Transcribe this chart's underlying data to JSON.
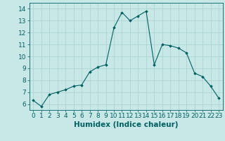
{
  "x": [
    0,
    1,
    2,
    3,
    4,
    5,
    6,
    7,
    8,
    9,
    10,
    11,
    12,
    13,
    14,
    15,
    16,
    17,
    18,
    19,
    20,
    21,
    22,
    23
  ],
  "y": [
    6.3,
    5.8,
    6.8,
    7.0,
    7.2,
    7.5,
    7.6,
    8.7,
    9.1,
    9.3,
    12.4,
    13.7,
    13.0,
    13.4,
    13.8,
    9.3,
    11.0,
    10.9,
    10.7,
    10.3,
    8.6,
    8.3,
    7.5,
    6.5
  ],
  "xlabel": "Humidex (Indice chaleur)",
  "ylim": [
    5.5,
    14.5
  ],
  "xlim": [
    -0.5,
    23.5
  ],
  "yticks": [
    6,
    7,
    8,
    9,
    10,
    11,
    12,
    13,
    14
  ],
  "xticks": [
    0,
    1,
    2,
    3,
    4,
    5,
    6,
    7,
    8,
    9,
    10,
    11,
    12,
    13,
    14,
    15,
    16,
    17,
    18,
    19,
    20,
    21,
    22,
    23
  ],
  "line_color": "#006060",
  "marker_color": "#006060",
  "bg_color": "#c8e8e8",
  "grid_color": "#a8d0d0",
  "axes_color": "#006060",
  "tick_label_color": "#006060",
  "xlabel_color": "#006060",
  "font_size": 6.5,
  "xlabel_fontsize": 7.5
}
